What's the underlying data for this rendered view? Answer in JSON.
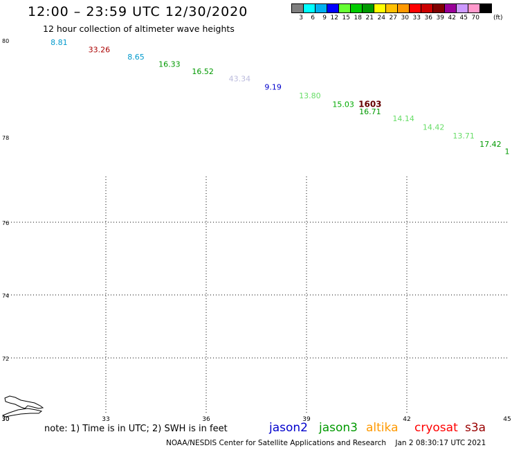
{
  "header": {
    "title": "12:00 – 23:59 UTC 12/30/2020",
    "subtitle": "12 hour collection of altimeter wave heights"
  },
  "legend": {
    "unit": "(ft)",
    "values": [
      "3",
      "6",
      "9",
      "12",
      "15",
      "18",
      "21",
      "24",
      "27",
      "30",
      "33",
      "36",
      "39",
      "42",
      "45",
      "70"
    ],
    "colors": [
      "#7f7f7f",
      "#00ffff",
      "#00b0f0",
      "#0000ff",
      "#66ff33",
      "#00cc00",
      "#009900",
      "#ffff00",
      "#ffc000",
      "#ff9900",
      "#ff0000",
      "#cc0000",
      "#800000",
      "#990099",
      "#cc99ff",
      "#ff99cc",
      "#000000"
    ]
  },
  "axes": {
    "lat_labels": [
      "80",
      "78",
      "76",
      "74",
      "72",
      "70"
    ],
    "lon_labels": [
      "30",
      "33",
      "36",
      "39",
      "42",
      "45"
    ]
  },
  "chart_data": {
    "type": "map",
    "lon_range": [
      30,
      45
    ],
    "lat_range": [
      70,
      80
    ],
    "grid": "dotted",
    "observations": [
      {
        "lon": 31.6,
        "lat": 79.9,
        "value": "8.81",
        "color": "#0099cc"
      },
      {
        "lon": 32.8,
        "lat": 79.75,
        "value": "33.26",
        "color": "#aa0000"
      },
      {
        "lon": 33.9,
        "lat": 79.6,
        "value": "8.65",
        "color": "#0099cc"
      },
      {
        "lon": 34.9,
        "lat": 79.45,
        "value": "16.33",
        "color": "#009900"
      },
      {
        "lon": 35.9,
        "lat": 79.3,
        "value": "16.52",
        "color": "#009900"
      },
      {
        "lon": 37.0,
        "lat": 79.15,
        "value": "43.34",
        "color": "#bbbbdd"
      },
      {
        "lon": 38.0,
        "lat": 78.98,
        "value": "9.19",
        "color": "#0000cc"
      },
      {
        "lon": 39.1,
        "lat": 78.8,
        "value": "13.80",
        "color": "#66dd66"
      },
      {
        "lon": 40.1,
        "lat": 78.62,
        "value": "15.03",
        "color": "#00aa00"
      },
      {
        "lon": 40.9,
        "lat": 78.62,
        "value": "1603",
        "color": "#660000"
      },
      {
        "lon": 40.9,
        "lat": 78.47,
        "value": "16.71",
        "color": "#009900"
      },
      {
        "lon": 41.9,
        "lat": 78.33,
        "value": "14.14",
        "color": "#66dd66"
      },
      {
        "lon": 42.8,
        "lat": 78.15,
        "value": "14.42",
        "color": "#66dd66"
      },
      {
        "lon": 43.7,
        "lat": 77.97,
        "value": "13.71",
        "color": "#66dd66"
      },
      {
        "lon": 44.5,
        "lat": 77.77,
        "value": "17.42",
        "color": "#009900"
      },
      {
        "lon": 45.0,
        "lat": 77.6,
        "value": "1",
        "color": "#009900"
      }
    ]
  },
  "satellites": [
    {
      "name": "jason2",
      "color": "#0000cc"
    },
    {
      "name": "jason3",
      "color": "#009900"
    },
    {
      "name": "altika",
      "color": "#ff9900"
    },
    {
      "name": "cryosat",
      "color": "#ff0000"
    },
    {
      "name": "s3a",
      "color": "#990000"
    }
  ],
  "footer": {
    "note": "note: 1) Time is in UTC; 2) SWH is in feet",
    "credit": "NOAA/NESDIS Center for Satellite Applications and Research",
    "timestamp": "Jan  2 08:30:17 UTC 2021"
  }
}
